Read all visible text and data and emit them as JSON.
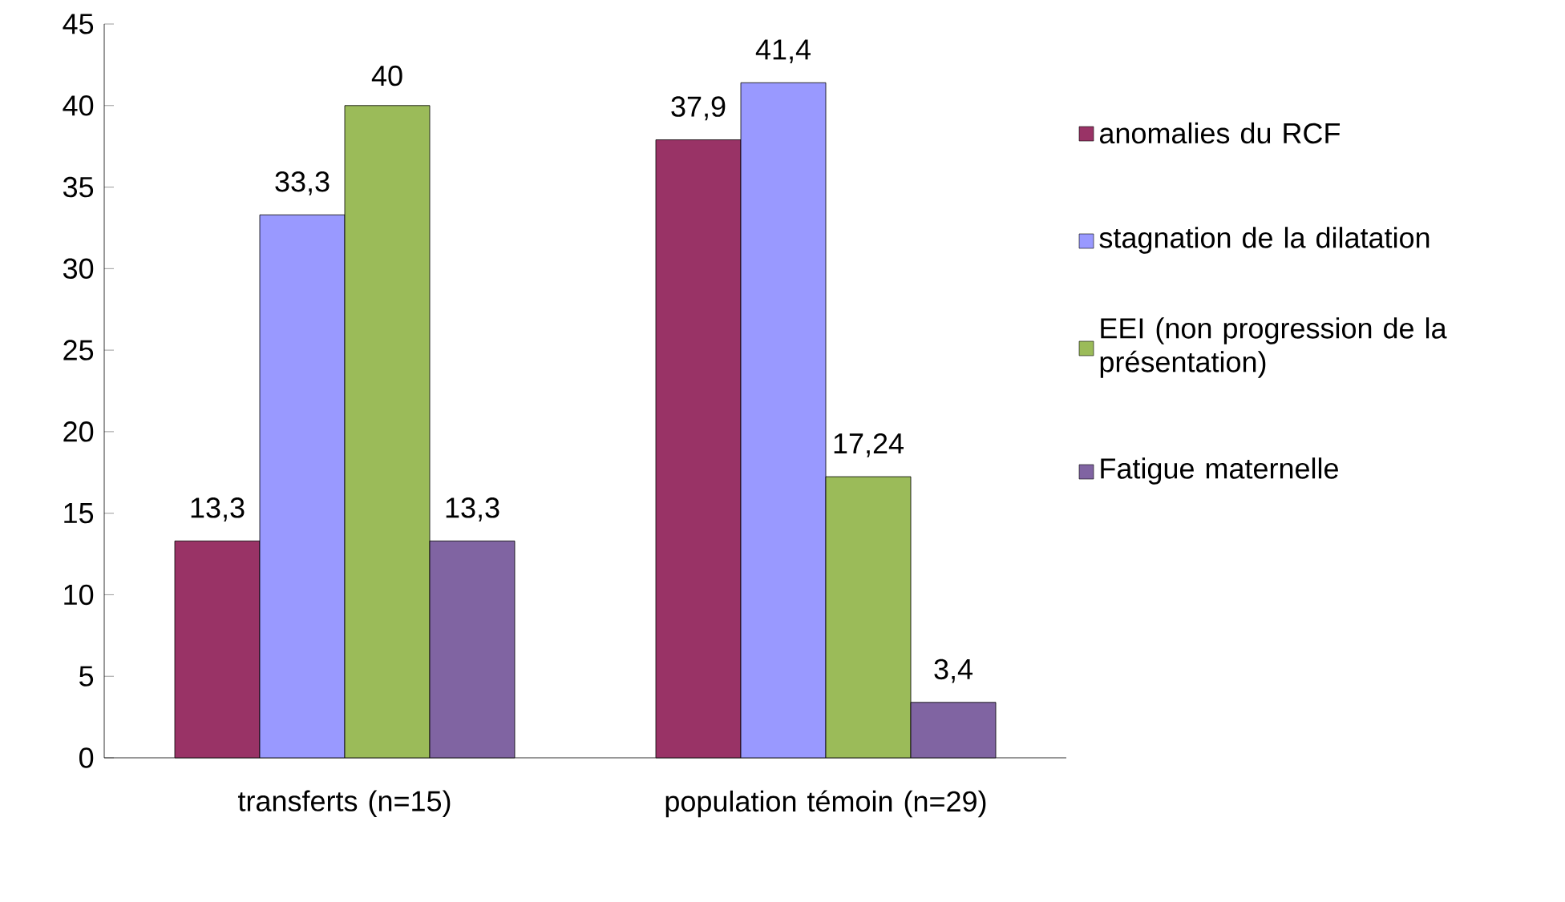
{
  "chart_data": {
    "type": "bar",
    "categories": [
      "transferts (n=15)",
      "population témoin (n=29)"
    ],
    "series": [
      {
        "name": "anomalies du RCF",
        "color": "#993366",
        "values": [
          13.3,
          37.9
        ],
        "value_labels": [
          "13,3",
          "37,9"
        ]
      },
      {
        "name": "stagnation de la dilatation",
        "color": "#9999ff",
        "values": [
          33.3,
          41.4
        ],
        "value_labels": [
          "33,3",
          "41,4"
        ]
      },
      {
        "name": "EEI (non progression de la présentation)",
        "color": "#9bbb59",
        "values": [
          40,
          17.24
        ],
        "value_labels": [
          "40",
          "17,24"
        ]
      },
      {
        "name": "Fatigue maternelle",
        "color": "#8064a2",
        "values": [
          13.3,
          3.4
        ],
        "value_labels": [
          "13,3",
          "3,4"
        ]
      }
    ],
    "ylim": [
      0,
      45
    ],
    "yticks": [
      0,
      5,
      10,
      15,
      20,
      25,
      30,
      35,
      40,
      45
    ],
    "legend": "right",
    "grid": false
  }
}
